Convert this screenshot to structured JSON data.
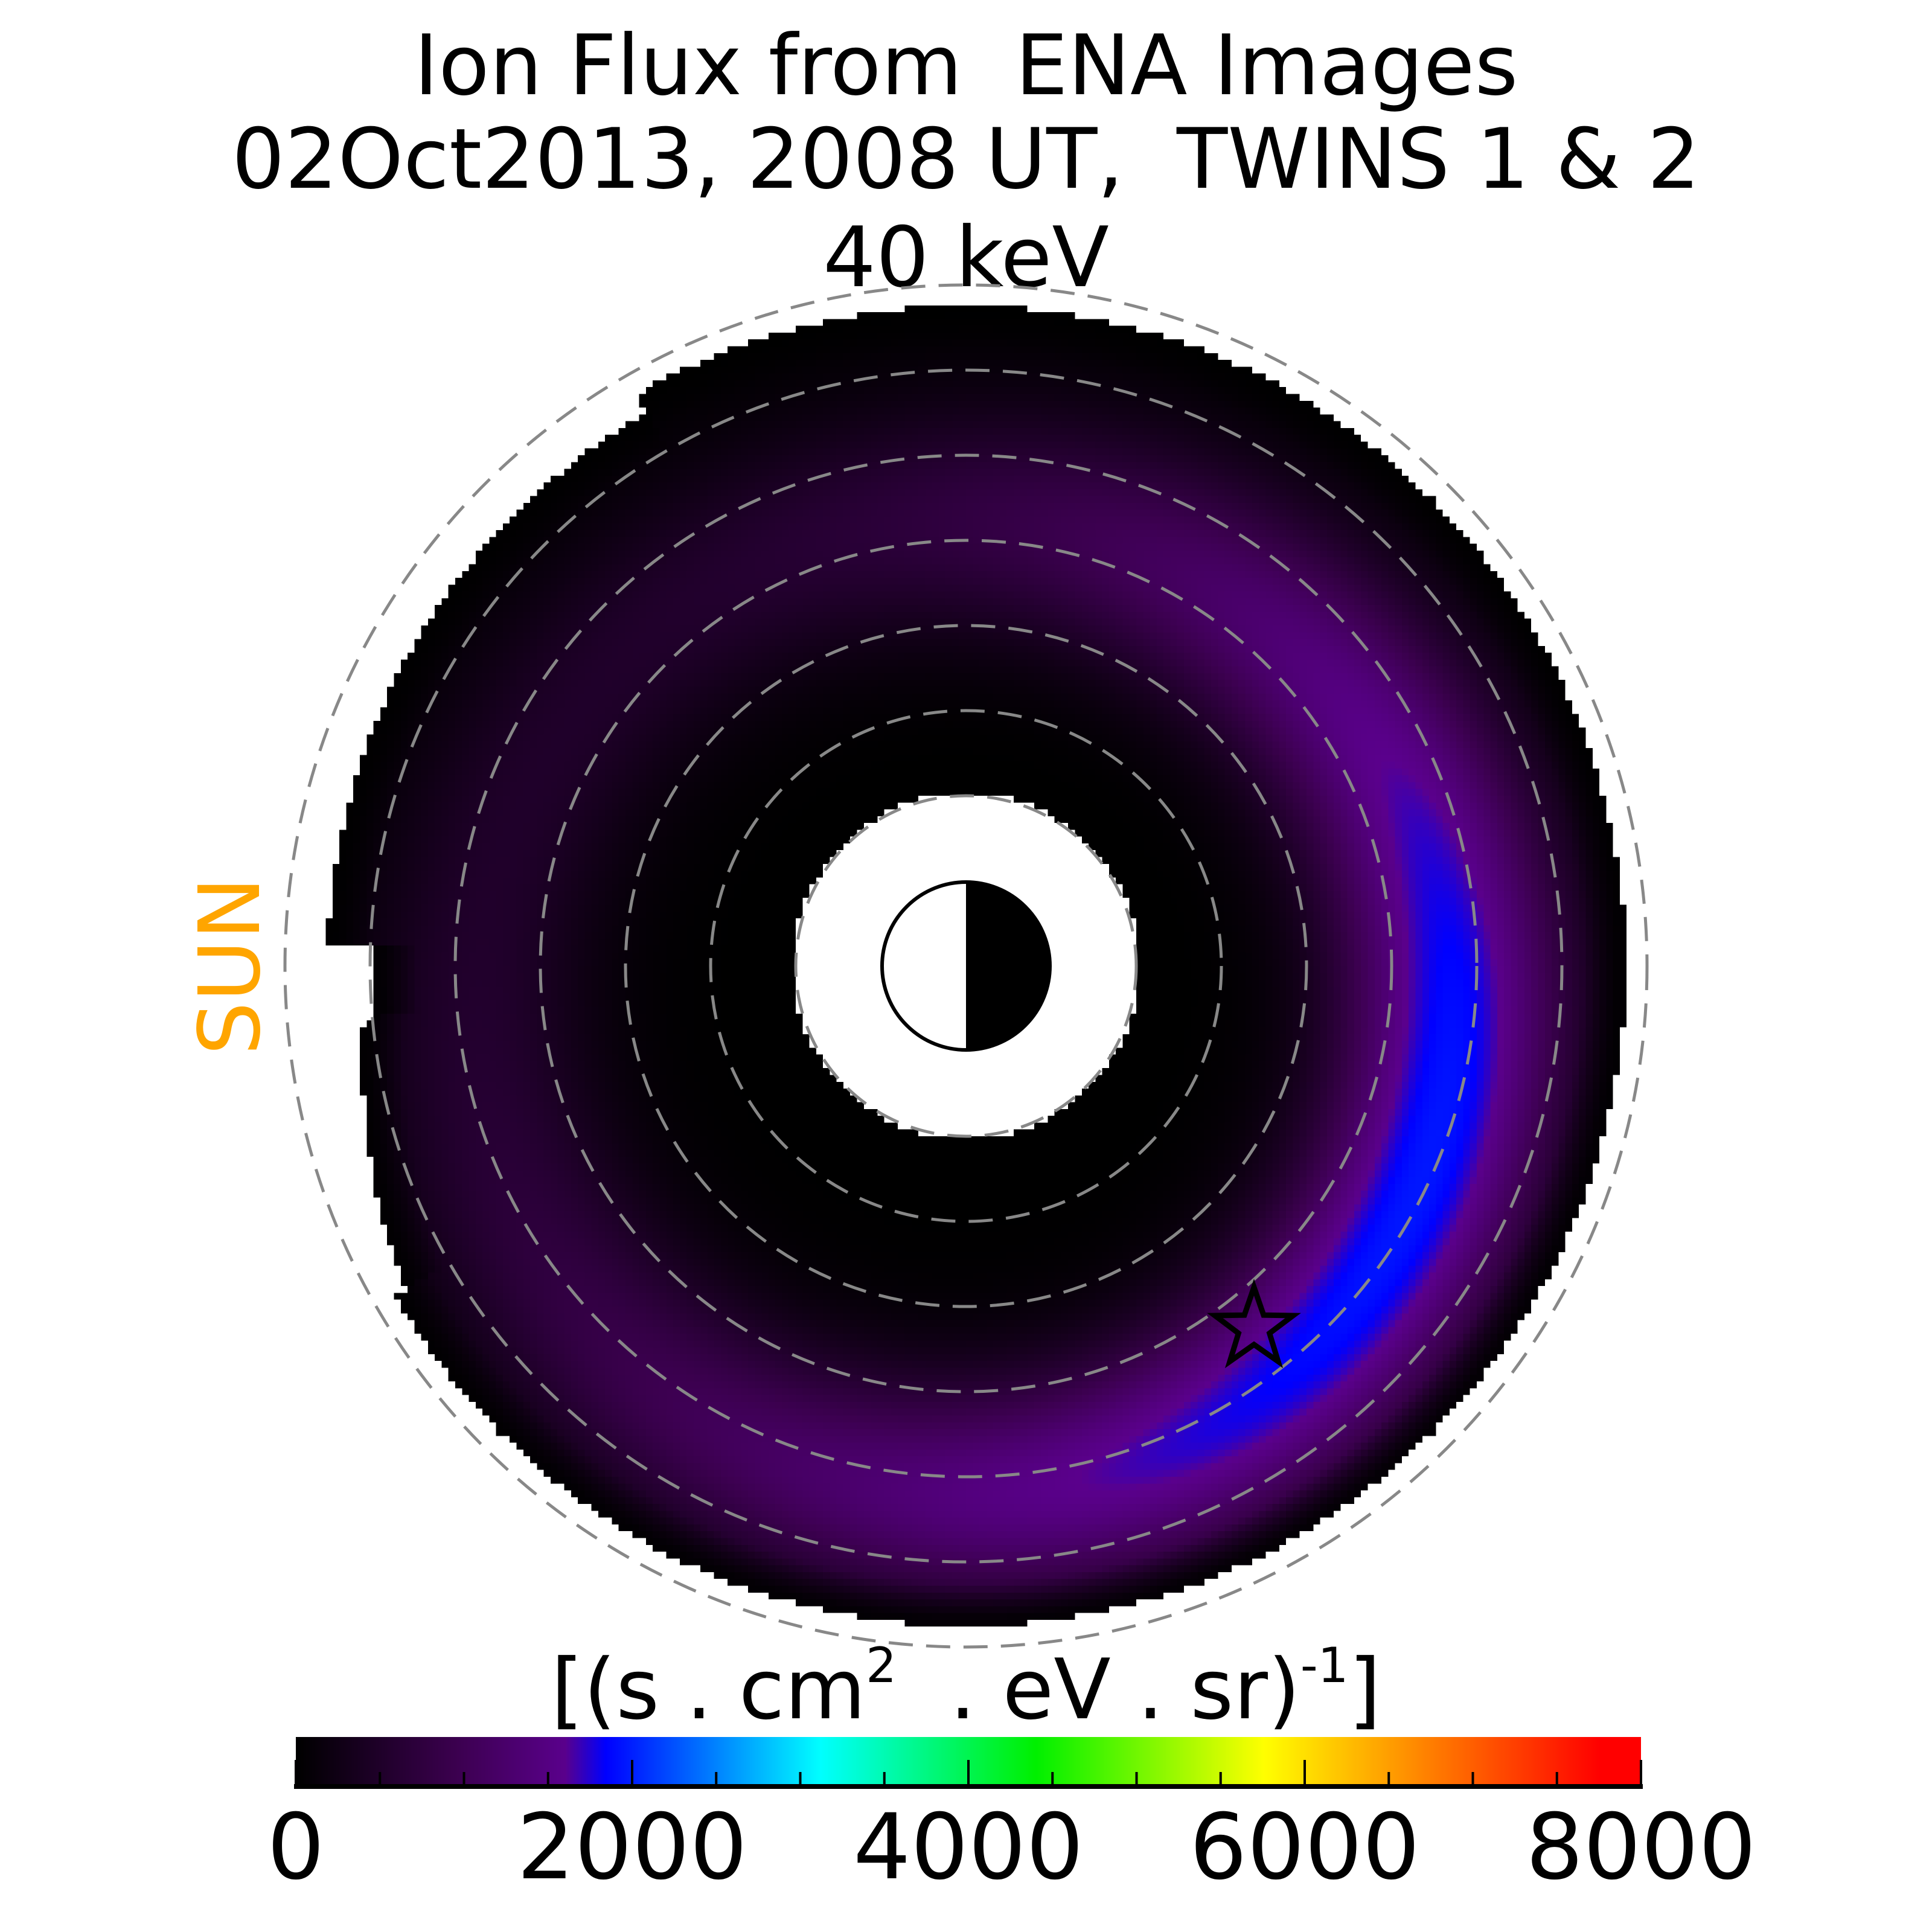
{
  "title": {
    "line1": "Ion Flux from  ENA Images",
    "line2": "02Oct2013, 2008 UT,  TWINS 1 & 2",
    "line3": "40 keV"
  },
  "sun_label": "SUN",
  "colors": {
    "sun_label": "#ffa500",
    "dashed_circles": "#888888"
  },
  "chart_data": {
    "type": "heatmap",
    "title": "Ion Flux from  ENA Images 02Oct2013, 2008 UT,  TWINS 1 & 2 40 keV",
    "projection": "polar equatorial map, Earth at center, Sun to the left",
    "dashed_circle_radii_RE": [
      2,
      3,
      4,
      5,
      6,
      7,
      8
    ],
    "marker": "star",
    "colorbar": {
      "label_base": "[(s . cm",
      "label_exp1": "2",
      "label_mid": "  . eV . sr)",
      "label_exp2": "-1",
      "label_end": "]",
      "range": [
        0,
        8000
      ],
      "ticks": [
        "0",
        "2000",
        "4000",
        "6000",
        "8000"
      ],
      "tick_values": [
        0,
        2000,
        4000,
        6000,
        8000
      ],
      "minor_tick_step": 500,
      "colormap": "black-purple-blue-cyan-green-yellow-orange-red"
    },
    "observed_max_approx": 2000
  }
}
